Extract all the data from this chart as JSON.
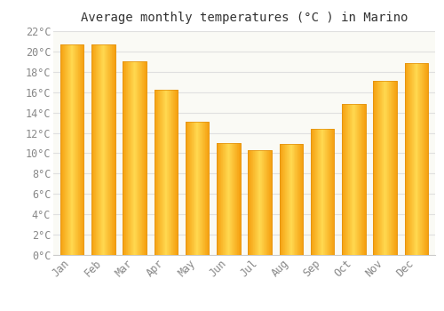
{
  "title": "Average monthly temperatures (°C ) in Marino",
  "months": [
    "Jan",
    "Feb",
    "Mar",
    "Apr",
    "May",
    "Jun",
    "Jul",
    "Aug",
    "Sep",
    "Oct",
    "Nov",
    "Dec"
  ],
  "values": [
    20.7,
    20.7,
    19.0,
    16.2,
    13.1,
    11.0,
    10.3,
    10.9,
    12.4,
    14.8,
    17.1,
    18.9
  ],
  "bar_color_left": "#FFA000",
  "bar_color_center": "#FFD04A",
  "bar_color_right": "#FFA000",
  "background_color": "#FFFFFF",
  "plot_bg_color": "#FAFAF5",
  "grid_color": "#E0E0E0",
  "tick_label_color": "#888888",
  "title_color": "#333333",
  "ylim": [
    0,
    22
  ],
  "yticks": [
    0,
    2,
    4,
    6,
    8,
    10,
    12,
    14,
    16,
    18,
    20,
    22
  ],
  "title_fontsize": 10,
  "tick_fontsize": 8.5,
  "bar_width": 0.75
}
